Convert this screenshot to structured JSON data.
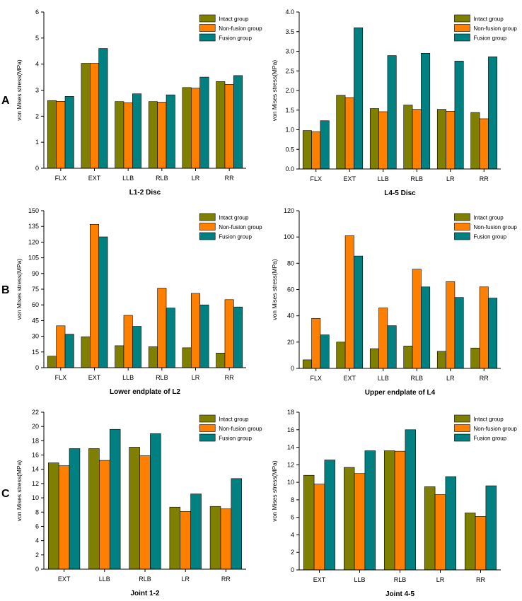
{
  "figure": {
    "row_labels": [
      "A",
      "B",
      "C"
    ],
    "colors": {
      "intact": "#808000",
      "nonfusion": "#FF8000",
      "fusion": "#008080"
    }
  },
  "chart_data": [
    {
      "type": "bar",
      "title": "L1-2 Disc",
      "ylabel": "von Mises stress(MPa)",
      "xlabel": "",
      "categories": [
        "FLX",
        "EXT",
        "LLB",
        "RLB",
        "LR",
        "RR"
      ],
      "ylim": [
        0,
        6
      ],
      "yticks": [
        0,
        1,
        2,
        3,
        4,
        5,
        6
      ],
      "legend": "top-right",
      "grid": false,
      "series": [
        {
          "name": "Intact group",
          "values": [
            2.6,
            4.03,
            2.56,
            2.56,
            3.1,
            3.33
          ]
        },
        {
          "name": "Non-fusion group",
          "values": [
            2.57,
            4.03,
            2.52,
            2.54,
            3.08,
            3.22
          ]
        },
        {
          "name": "Fusion group",
          "values": [
            2.76,
            4.6,
            2.86,
            2.82,
            3.5,
            3.56
          ]
        }
      ]
    },
    {
      "type": "bar",
      "title": "L4-5 Disc",
      "ylabel": "von Mises stress(MPa)",
      "xlabel": "",
      "categories": [
        "FLX",
        "EXT",
        "LLB",
        "RLB",
        "LR",
        "RR"
      ],
      "ylim": [
        0,
        4
      ],
      "yticks": [
        "0.0",
        "0.5",
        "1.0",
        "1.5",
        "2.0",
        "2.5",
        "3.0",
        "3.5",
        "4.0"
      ],
      "legend": "top-right",
      "grid": false,
      "series": [
        {
          "name": "Intact group",
          "values": [
            0.98,
            1.88,
            1.54,
            1.63,
            1.52,
            1.44
          ]
        },
        {
          "name": "Non-fusion group",
          "values": [
            0.95,
            1.82,
            1.46,
            1.52,
            1.47,
            1.28
          ]
        },
        {
          "name": "Fusion group",
          "values": [
            1.23,
            3.6,
            2.89,
            2.95,
            2.75,
            2.86
          ]
        }
      ]
    },
    {
      "type": "bar",
      "title": "Lower endplate of L2",
      "ylabel": "von Mises stress(MPa)",
      "xlabel": "",
      "categories": [
        "FLX",
        "EXT",
        "LLB",
        "RLB",
        "LR",
        "RR"
      ],
      "ylim": [
        0,
        150
      ],
      "yticks": [
        0,
        15,
        30,
        45,
        60,
        75,
        90,
        105,
        120,
        135,
        150
      ],
      "legend": "top-right",
      "grid": false,
      "series": [
        {
          "name": "Intact group",
          "values": [
            11,
            29.5,
            21,
            20,
            19,
            14
          ]
        },
        {
          "name": "Non-fusion group",
          "values": [
            40,
            137,
            50,
            76,
            71,
            65
          ]
        },
        {
          "name": "Fusion group",
          "values": [
            32,
            125,
            39.5,
            57,
            60,
            58
          ]
        }
      ]
    },
    {
      "type": "bar",
      "title": "Upper endplate of L4",
      "ylabel": "von Mises stress(MPa)",
      "xlabel": "",
      "categories": [
        "FLX",
        "EXT",
        "LLB",
        "RLB",
        "LR",
        "RR"
      ],
      "ylim": [
        0,
        120
      ],
      "yticks": [
        0,
        20,
        40,
        60,
        80,
        100,
        120
      ],
      "legend": "top-right",
      "grid": false,
      "series": [
        {
          "name": "Intact group",
          "values": [
            6.5,
            20,
            15,
            17,
            13,
            15.5
          ]
        },
        {
          "name": "Non-fusion group",
          "values": [
            38,
            101,
            46,
            75.5,
            66,
            62
          ]
        },
        {
          "name": "Fusion group",
          "values": [
            25.5,
            85.5,
            32.5,
            62,
            54,
            53.5
          ]
        }
      ]
    },
    {
      "type": "bar",
      "title": "Joint 1-2",
      "ylabel": "von Mises stress(MPa)",
      "xlabel": "",
      "categories": [
        "EXT",
        "LLB",
        "RLB",
        "LR",
        "RR"
      ],
      "ylim": [
        0,
        22
      ],
      "yticks": [
        0,
        2,
        4,
        6,
        8,
        10,
        12,
        14,
        16,
        18,
        20,
        22
      ],
      "legend": "top-right",
      "grid": false,
      "series": [
        {
          "name": "Intact group",
          "values": [
            14.9,
            16.9,
            17.1,
            8.7,
            8.8
          ]
        },
        {
          "name": "Non-fusion group",
          "values": [
            14.5,
            15.25,
            15.9,
            8.1,
            8.45
          ]
        },
        {
          "name": "Fusion group",
          "values": [
            16.9,
            19.6,
            19.0,
            10.55,
            12.7
          ]
        }
      ]
    },
    {
      "type": "bar",
      "title": "Joint 4-5",
      "ylabel": "von Mises stress(MPa)",
      "xlabel": "",
      "categories": [
        "EXT",
        "LLB",
        "RLB",
        "LR",
        "RR"
      ],
      "ylim": [
        0,
        18
      ],
      "yticks": [
        0,
        2,
        4,
        6,
        8,
        10,
        12,
        14,
        16,
        18
      ],
      "legend": "top-right",
      "grid": false,
      "series": [
        {
          "name": "Intact group",
          "values": [
            10.8,
            11.7,
            13.6,
            9.5,
            6.5
          ]
        },
        {
          "name": "Non-fusion group",
          "values": [
            9.8,
            11.0,
            13.55,
            8.6,
            6.1
          ]
        },
        {
          "name": "Fusion group",
          "values": [
            12.55,
            13.6,
            16.0,
            10.65,
            9.6
          ]
        }
      ]
    }
  ]
}
